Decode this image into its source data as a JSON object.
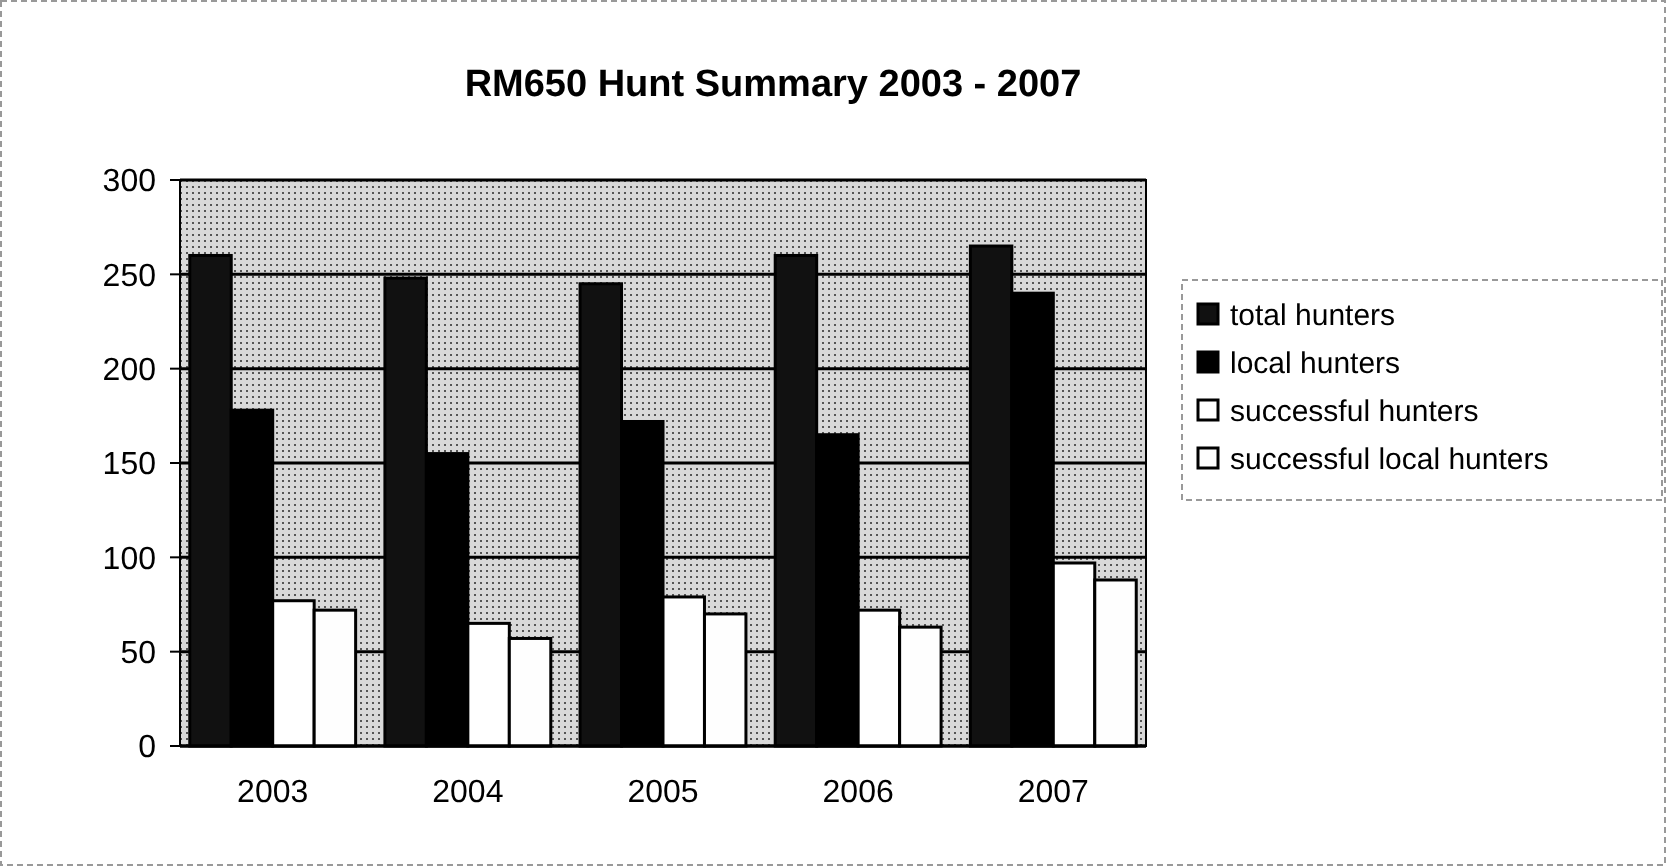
{
  "chart_data": {
    "type": "bar",
    "title": "RM650 Hunt Summary 2003 - 2007",
    "categories": [
      "2003",
      "2004",
      "2005",
      "2006",
      "2007"
    ],
    "series": [
      {
        "name": "total hunters",
        "color": "#111111",
        "values": [
          260,
          248,
          245,
          260,
          265
        ]
      },
      {
        "name": "local hunters",
        "color": "#000000",
        "values": [
          178,
          155,
          172,
          165,
          240
        ]
      },
      {
        "name": "successful hunters",
        "color": "#ffffff",
        "values": [
          77,
          65,
          79,
          72,
          97
        ]
      },
      {
        "name": "successful local hunters",
        "color": "#fefefe",
        "values": [
          72,
          57,
          70,
          63,
          88
        ]
      }
    ],
    "ylim": [
      0,
      300
    ],
    "yticks": [
      0,
      50,
      100,
      150,
      200,
      250,
      300
    ],
    "grid": "y",
    "legend": "right"
  }
}
